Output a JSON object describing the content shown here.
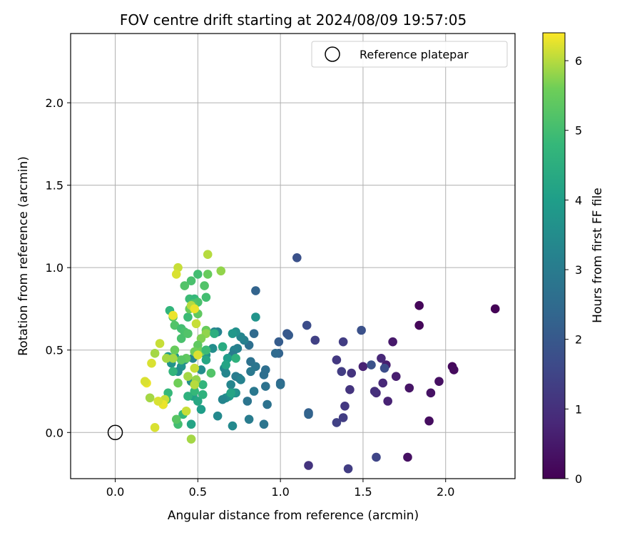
{
  "chart_data": {
    "type": "scatter",
    "title": "FOV centre drift starting at 2024/08/09 19:57:05",
    "xlabel": "Angular distance from reference (arcmin)",
    "ylabel": "Rotation from reference (arcmin)",
    "xlim": [
      -0.27,
      2.42
    ],
    "ylim": [
      -0.28,
      2.42
    ],
    "xticks": [
      "0.0",
      "0.5",
      "1.0",
      "1.5",
      "2.0"
    ],
    "yticks": [
      "0.0",
      "0.5",
      "1.0",
      "1.5",
      "2.0"
    ],
    "grid": true,
    "legend": {
      "label": "Reference platepar",
      "position": "top-right"
    },
    "reference_point": {
      "x": 0.0,
      "y": 0.0
    },
    "colorbar": {
      "label": "Hours from first FF file",
      "ticks": [
        "0",
        "1",
        "2",
        "3",
        "4",
        "5",
        "6"
      ],
      "range": [
        0,
        6.4
      ],
      "colormap": "viridis"
    },
    "series": [
      {
        "points": [
          [
            2.3,
            0.75,
            0.05
          ],
          [
            1.84,
            0.77,
            0.1
          ],
          [
            1.84,
            0.65,
            0.12
          ],
          [
            2.04,
            0.4,
            0.15
          ],
          [
            2.05,
            0.38,
            0.2
          ],
          [
            1.96,
            0.31,
            0.3
          ],
          [
            1.91,
            0.24,
            0.35
          ],
          [
            1.9,
            0.07,
            0.25
          ],
          [
            1.77,
            -0.15,
            0.3
          ],
          [
            1.78,
            0.27,
            0.4
          ],
          [
            1.7,
            0.34,
            0.6
          ],
          [
            1.68,
            0.55,
            0.5
          ],
          [
            1.65,
            0.19,
            0.7
          ],
          [
            1.64,
            0.41,
            0.6
          ],
          [
            1.61,
            0.45,
            0.8
          ],
          [
            1.62,
            0.3,
            0.8
          ],
          [
            1.58,
            0.24,
            0.9
          ],
          [
            1.57,
            0.25,
            1.0
          ],
          [
            1.5,
            0.4,
            0.7
          ],
          [
            1.43,
            0.36,
            1.1
          ],
          [
            1.42,
            0.26,
            1.1
          ],
          [
            1.39,
            0.16,
            1.2
          ],
          [
            1.38,
            0.09,
            1.3
          ],
          [
            1.34,
            0.06,
            1.4
          ],
          [
            1.37,
            0.37,
            1.3
          ],
          [
            1.34,
            0.44,
            1.2
          ],
          [
            1.38,
            0.55,
            1.3
          ],
          [
            1.41,
            -0.22,
            1.3
          ],
          [
            1.17,
            -0.2,
            1.1
          ],
          [
            1.58,
            -0.15,
            1.5
          ],
          [
            1.55,
            0.41,
            1.8
          ],
          [
            1.63,
            0.39,
            1.7
          ],
          [
            1.49,
            0.62,
            1.8
          ],
          [
            1.21,
            0.56,
            1.4
          ],
          [
            1.16,
            0.65,
            1.7
          ],
          [
            1.1,
            1.06,
            1.8
          ],
          [
            1.05,
            0.59,
            2.1
          ],
          [
            1.04,
            0.6,
            2.0
          ],
          [
            1.17,
            0.12,
            2.2
          ],
          [
            1.17,
            0.11,
            2.3
          ],
          [
            0.99,
            0.55,
            2.1
          ],
          [
            0.99,
            0.48,
            2.3
          ],
          [
            0.97,
            0.48,
            2.5
          ],
          [
            1.0,
            0.3,
            2.4
          ],
          [
            1.0,
            0.29,
            2.6
          ],
          [
            0.91,
            0.38,
            2.6
          ],
          [
            0.9,
            0.35,
            2.6
          ],
          [
            0.91,
            0.28,
            2.7
          ],
          [
            0.92,
            0.17,
            2.7
          ],
          [
            0.9,
            0.05,
            2.8
          ],
          [
            0.85,
            0.86,
            2.3
          ],
          [
            0.84,
            0.6,
            2.5
          ],
          [
            0.81,
            0.53,
            2.6
          ],
          [
            0.82,
            0.43,
            2.7
          ],
          [
            0.85,
            0.4,
            2.8
          ],
          [
            0.82,
            0.37,
            2.9
          ],
          [
            0.84,
            0.25,
            2.9
          ],
          [
            0.8,
            0.19,
            2.8
          ],
          [
            0.81,
            0.08,
            3.0
          ],
          [
            0.78,
            0.56,
            3.1
          ],
          [
            0.76,
            0.58,
            3.3
          ],
          [
            0.74,
            0.51,
            3.1
          ],
          [
            0.72,
            0.5,
            3.2
          ],
          [
            0.71,
            0.47,
            3.0
          ],
          [
            0.75,
            0.33,
            3.1
          ],
          [
            0.73,
            0.34,
            3.0
          ],
          [
            0.76,
            0.32,
            3.2
          ],
          [
            0.7,
            0.29,
            3.3
          ],
          [
            0.73,
            0.24,
            3.5
          ],
          [
            0.72,
            0.24,
            3.7
          ],
          [
            0.69,
            0.22,
            3.9
          ],
          [
            0.67,
            0.21,
            3.5
          ],
          [
            0.65,
            0.2,
            3.3
          ],
          [
            0.62,
            0.1,
            3.4
          ],
          [
            0.71,
            0.04,
            3.4
          ],
          [
            0.85,
            0.7,
            3.7
          ],
          [
            0.73,
            0.61,
            3.6
          ],
          [
            0.71,
            0.6,
            3.8
          ],
          [
            0.66,
            0.39,
            3.4
          ],
          [
            0.67,
            0.36,
            3.3
          ],
          [
            0.62,
            0.61,
            3.2
          ],
          [
            0.6,
            0.61,
            3.3
          ],
          [
            0.59,
            0.51,
            3.5
          ],
          [
            0.55,
            0.47,
            3.7
          ],
          [
            0.52,
            0.38,
            3.5
          ],
          [
            0.47,
            0.45,
            3.3
          ],
          [
            0.46,
            0.31,
            3.6
          ],
          [
            0.42,
            0.44,
            3.4
          ],
          [
            0.4,
            0.4,
            3.7
          ],
          [
            0.36,
            0.46,
            3.8
          ],
          [
            0.38,
            0.37,
            3.5
          ],
          [
            0.34,
            0.42,
            3.7
          ],
          [
            0.32,
            0.46,
            3.9
          ],
          [
            0.68,
            0.45,
            4.0
          ],
          [
            0.67,
            0.41,
            4.2
          ],
          [
            0.65,
            0.52,
            4.4
          ],
          [
            0.73,
            0.45,
            4.6
          ],
          [
            0.7,
            0.24,
            4.2
          ],
          [
            0.52,
            0.14,
            4.0
          ],
          [
            0.46,
            0.05,
            4.2
          ],
          [
            0.47,
            0.22,
            4.1
          ],
          [
            0.5,
            0.19,
            4.3
          ],
          [
            0.55,
            0.44,
            4.3
          ],
          [
            0.53,
            0.23,
            4.6
          ],
          [
            0.53,
            0.29,
            4.7
          ],
          [
            0.48,
            0.25,
            4.8
          ],
          [
            0.44,
            0.22,
            4.6
          ],
          [
            0.41,
            0.11,
            4.8
          ],
          [
            0.38,
            0.05,
            5.0
          ],
          [
            0.37,
            0.08,
            5.3
          ],
          [
            0.35,
            0.37,
            4.7
          ],
          [
            0.32,
            0.24,
            4.8
          ],
          [
            0.31,
            0.2,
            5.0
          ],
          [
            0.29,
            0.17,
            5.2
          ],
          [
            0.33,
            0.74,
            4.7
          ],
          [
            0.35,
            0.7,
            5.3
          ],
          [
            0.36,
            0.65,
            5.2
          ],
          [
            0.4,
            0.63,
            5.0
          ],
          [
            0.42,
            0.61,
            5.1
          ],
          [
            0.4,
            0.57,
            5.1
          ],
          [
            0.44,
            0.6,
            5.2
          ],
          [
            0.44,
            0.7,
            4.9
          ],
          [
            0.45,
            0.81,
            4.9
          ],
          [
            0.48,
            0.81,
            4.8
          ],
          [
            0.5,
            0.79,
            5.1
          ],
          [
            0.47,
            0.78,
            5.2
          ],
          [
            0.5,
            0.72,
            5.4
          ],
          [
            0.45,
            0.75,
            5.5
          ],
          [
            0.5,
            0.96,
            5.0
          ],
          [
            0.46,
            0.92,
            5.1
          ],
          [
            0.42,
            0.89,
            5.2
          ],
          [
            0.54,
            0.89,
            5.2
          ],
          [
            0.55,
            0.82,
            5.0
          ],
          [
            0.56,
            0.96,
            5.5
          ],
          [
            0.55,
            0.62,
            5.5
          ],
          [
            0.55,
            0.6,
            5.8
          ],
          [
            0.52,
            0.57,
            5.7
          ],
          [
            0.5,
            0.53,
            5.4
          ],
          [
            0.48,
            0.49,
            5.6
          ],
          [
            0.52,
            0.49,
            5.6
          ],
          [
            0.43,
            0.45,
            5.4
          ],
          [
            0.4,
            0.44,
            5.3
          ],
          [
            0.36,
            0.5,
            5.5
          ],
          [
            0.38,
            0.3,
            5.6
          ],
          [
            0.35,
            0.45,
            5.9
          ],
          [
            0.31,
            0.45,
            5.9
          ],
          [
            0.27,
            0.54,
            6.1
          ],
          [
            0.24,
            0.48,
            5.9
          ],
          [
            0.22,
            0.42,
            6.2
          ],
          [
            0.19,
            0.3,
            6.3
          ],
          [
            0.18,
            0.31,
            6.2
          ],
          [
            0.21,
            0.21,
            5.9
          ],
          [
            0.3,
            0.2,
            6.1
          ],
          [
            0.29,
            0.17,
            6.3
          ],
          [
            0.26,
            0.19,
            6.2
          ],
          [
            0.24,
            0.03,
            6.2
          ],
          [
            0.38,
            1.0,
            6.1
          ],
          [
            0.37,
            0.96,
            6.2
          ],
          [
            0.56,
            1.08,
            6.0
          ],
          [
            0.64,
            0.98,
            5.8
          ],
          [
            0.46,
            0.77,
            6.0
          ],
          [
            0.48,
            0.75,
            6.3
          ],
          [
            0.35,
            0.71,
            6.3
          ],
          [
            0.49,
            0.66,
            6.1
          ],
          [
            0.5,
            0.47,
            6.2
          ],
          [
            0.48,
            0.39,
            6.1
          ],
          [
            0.49,
            0.32,
            5.8
          ],
          [
            0.48,
            0.29,
            6.0
          ],
          [
            0.44,
            0.34,
            5.9
          ],
          [
            0.46,
            -0.04,
            5.9
          ],
          [
            0.43,
            0.13,
            6.1
          ],
          [
            0.58,
            0.36,
            5.2
          ],
          [
            0.55,
            0.5,
            4.9
          ],
          [
            0.6,
            0.6,
            4.5
          ]
        ]
      }
    ]
  }
}
